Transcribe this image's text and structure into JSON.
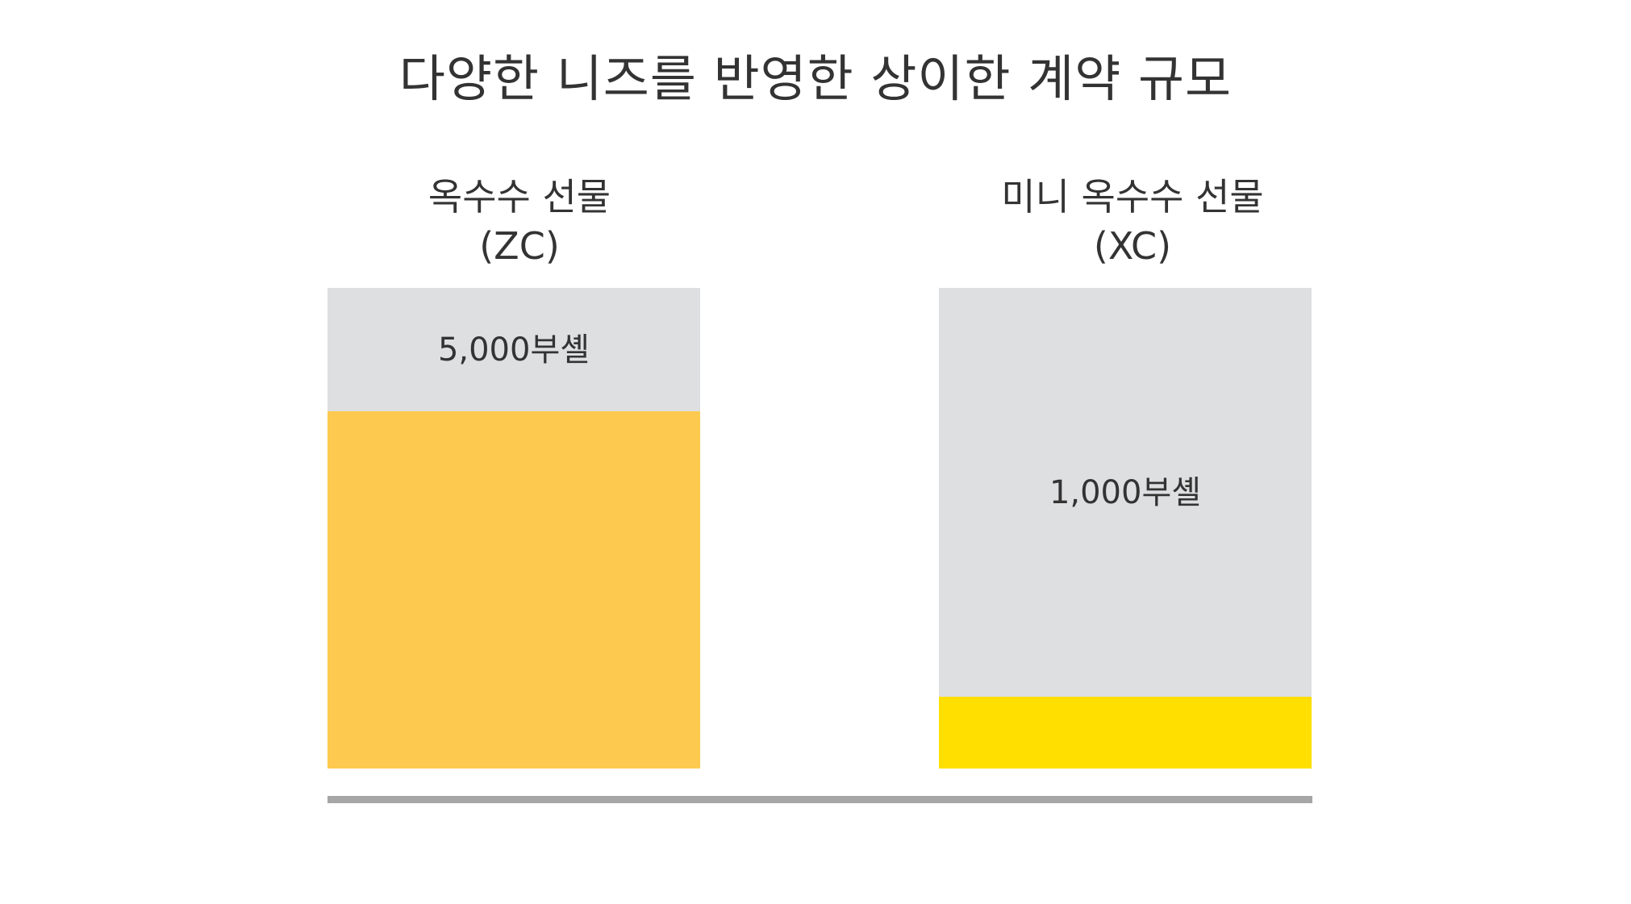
{
  "title": "다양한 니즈를 반영한 상이한 계약 규모",
  "chart_data": {
    "type": "bar",
    "title": "다양한 니즈를 반영한 상이한 계약 규모",
    "xlabel": "",
    "ylabel": "",
    "categories": [
      {
        "line1": "옥수수 선물",
        "line2": "(ZC)"
      },
      {
        "line1": "미니 옥수수 선물",
        "line2": "(XC)"
      }
    ],
    "values": [
      5000,
      1000
    ],
    "value_labels": [
      "5,000부셸",
      "1,000부셸"
    ],
    "unit": "부셸",
    "ylim": [
      0,
      6720
    ],
    "grid": false,
    "legend": "none",
    "colors": {
      "bar_fills": [
        "#fdca4f",
        "#fedf00"
      ],
      "panel_background": "#dedfe1",
      "baseline": "#a6a6a6",
      "text": "#333333"
    }
  }
}
